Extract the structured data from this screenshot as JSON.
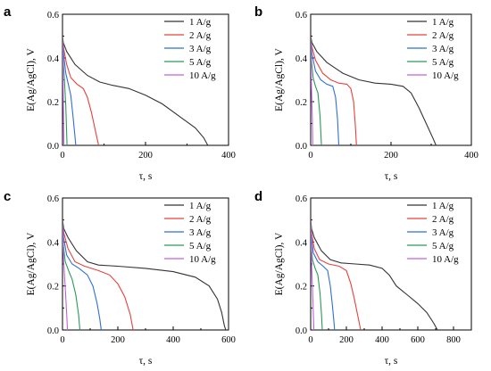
{
  "chart_data": [
    {
      "panel": "a",
      "type": "line",
      "xlabel": "τ, s",
      "ylabel": "E(Ag/AgCl), V",
      "xlim": [
        0,
        400
      ],
      "ylim": [
        0,
        0.6
      ],
      "xticks": [
        0,
        200,
        400
      ],
      "yticks": [
        0.0,
        0.2,
        0.4,
        0.6
      ],
      "legend": "top-right",
      "series": [
        {
          "name": "1  A/g",
          "color": "#333333",
          "points": [
            [
              0,
              0.5
            ],
            [
              2,
              0.47
            ],
            [
              10,
              0.43
            ],
            [
              30,
              0.37
            ],
            [
              60,
              0.32
            ],
            [
              90,
              0.29
            ],
            [
              120,
              0.275
            ],
            [
              160,
              0.26
            ],
            [
              200,
              0.23
            ],
            [
              240,
              0.19
            ],
            [
              280,
              0.135
            ],
            [
              320,
              0.08
            ],
            [
              340,
              0.035
            ],
            [
              350,
              0.0
            ]
          ]
        },
        {
          "name": "2 A/g",
          "color": "#e8403d",
          "points": [
            [
              0,
              0.5
            ],
            [
              3,
              0.44
            ],
            [
              10,
              0.37
            ],
            [
              20,
              0.31
            ],
            [
              35,
              0.28
            ],
            [
              50,
              0.26
            ],
            [
              60,
              0.22
            ],
            [
              70,
              0.15
            ],
            [
              80,
              0.06
            ],
            [
              87,
              0.0
            ]
          ]
        },
        {
          "name": "3 A/g",
          "color": "#2f6fd6",
          "points": [
            [
              0,
              0.49
            ],
            [
              3,
              0.41
            ],
            [
              8,
              0.33
            ],
            [
              14,
              0.28
            ],
            [
              20,
              0.23
            ],
            [
              25,
              0.14
            ],
            [
              30,
              0.04
            ],
            [
              32,
              0.0
            ]
          ]
        },
        {
          "name": "5 A/g",
          "color": "#2a9a58",
          "points": [
            [
              0,
              0.48
            ],
            [
              2,
              0.38
            ],
            [
              5,
              0.29
            ],
            [
              8,
              0.18
            ],
            [
              10,
              0.05
            ],
            [
              11,
              0.0
            ]
          ]
        },
        {
          "name": "10 A/g",
          "color": "#c060e0",
          "points": [
            [
              0,
              0.47
            ],
            [
              1,
              0.36
            ],
            [
              2,
              0.2
            ],
            [
              3,
              0.05
            ],
            [
              3.5,
              0.0
            ]
          ]
        }
      ]
    },
    {
      "panel": "b",
      "type": "line",
      "xlabel": "τ, s",
      "ylabel": "E(Ag/AgCl), V",
      "xlim": [
        0,
        400
      ],
      "ylim": [
        0,
        0.6
      ],
      "xticks": [
        0,
        200,
        400
      ],
      "yticks": [
        0.0,
        0.2,
        0.4,
        0.6
      ],
      "legend": "top-right",
      "series": [
        {
          "name": "1  A/g",
          "color": "#333333",
          "points": [
            [
              0,
              0.5
            ],
            [
              3,
              0.47
            ],
            [
              15,
              0.43
            ],
            [
              40,
              0.38
            ],
            [
              80,
              0.33
            ],
            [
              120,
              0.3
            ],
            [
              160,
              0.285
            ],
            [
              200,
              0.28
            ],
            [
              230,
              0.27
            ],
            [
              250,
              0.24
            ],
            [
              270,
              0.17
            ],
            [
              290,
              0.09
            ],
            [
              305,
              0.03
            ],
            [
              312,
              0.0
            ]
          ]
        },
        {
          "name": "2 A/g",
          "color": "#e8403d",
          "points": [
            [
              0,
              0.5
            ],
            [
              3,
              0.45
            ],
            [
              12,
              0.39
            ],
            [
              30,
              0.33
            ],
            [
              50,
              0.3
            ],
            [
              70,
              0.285
            ],
            [
              90,
              0.28
            ],
            [
              100,
              0.26
            ],
            [
              107,
              0.2
            ],
            [
              111,
              0.1
            ],
            [
              114,
              0.0
            ]
          ]
        },
        {
          "name": "3 A/g",
          "color": "#2f6fd6",
          "points": [
            [
              0,
              0.49
            ],
            [
              3,
              0.42
            ],
            [
              12,
              0.34
            ],
            [
              25,
              0.3
            ],
            [
              40,
              0.28
            ],
            [
              55,
              0.27
            ],
            [
              62,
              0.22
            ],
            [
              67,
              0.12
            ],
            [
              70,
              0.0
            ]
          ]
        },
        {
          "name": "5 A/g",
          "color": "#2a9a58",
          "points": [
            [
              0,
              0.48
            ],
            [
              2,
              0.39
            ],
            [
              6,
              0.31
            ],
            [
              12,
              0.27
            ],
            [
              18,
              0.24
            ],
            [
              23,
              0.14
            ],
            [
              27,
              0.0
            ]
          ]
        },
        {
          "name": "10 A/g",
          "color": "#c060e0",
          "points": [
            [
              0,
              0.47
            ],
            [
              1,
              0.37
            ],
            [
              2,
              0.26
            ],
            [
              4,
              0.13
            ],
            [
              5,
              0.0
            ]
          ]
        }
      ]
    },
    {
      "panel": "c",
      "type": "line",
      "xlabel": "τ, s",
      "ylabel": "E(Ag/AgCl), V",
      "xlim": [
        0,
        600
      ],
      "ylim": [
        0,
        0.6
      ],
      "xticks": [
        0,
        200,
        400,
        600
      ],
      "yticks": [
        0.0,
        0.2,
        0.4,
        0.6
      ],
      "legend": "top-right",
      "series": [
        {
          "name": "1  A/g",
          "color": "#333333",
          "points": [
            [
              0,
              0.5
            ],
            [
              5,
              0.46
            ],
            [
              20,
              0.42
            ],
            [
              50,
              0.36
            ],
            [
              90,
              0.31
            ],
            [
              130,
              0.295
            ],
            [
              200,
              0.29
            ],
            [
              300,
              0.28
            ],
            [
              400,
              0.265
            ],
            [
              480,
              0.24
            ],
            [
              530,
              0.2
            ],
            [
              560,
              0.14
            ],
            [
              575,
              0.08
            ],
            [
              585,
              0.02
            ],
            [
              590,
              0.0
            ]
          ]
        },
        {
          "name": "2 A/g",
          "color": "#e8403d",
          "points": [
            [
              0,
              0.5
            ],
            [
              5,
              0.44
            ],
            [
              20,
              0.37
            ],
            [
              45,
              0.31
            ],
            [
              80,
              0.29
            ],
            [
              130,
              0.27
            ],
            [
              170,
              0.25
            ],
            [
              200,
              0.21
            ],
            [
              225,
              0.15
            ],
            [
              245,
              0.07
            ],
            [
              255,
              0.0
            ]
          ]
        },
        {
          "name": "3 A/g",
          "color": "#2f6fd6",
          "points": [
            [
              0,
              0.49
            ],
            [
              4,
              0.42
            ],
            [
              15,
              0.34
            ],
            [
              35,
              0.3
            ],
            [
              60,
              0.28
            ],
            [
              90,
              0.25
            ],
            [
              110,
              0.2
            ],
            [
              125,
              0.12
            ],
            [
              135,
              0.05
            ],
            [
              140,
              0.0
            ]
          ]
        },
        {
          "name": "5 A/g",
          "color": "#2a9a58",
          "points": [
            [
              0,
              0.48
            ],
            [
              3,
              0.39
            ],
            [
              10,
              0.31
            ],
            [
              22,
              0.27
            ],
            [
              35,
              0.23
            ],
            [
              48,
              0.16
            ],
            [
              58,
              0.07
            ],
            [
              63,
              0.0
            ]
          ]
        },
        {
          "name": "10 A/g",
          "color": "#c060e0",
          "points": [
            [
              0,
              0.47
            ],
            [
              2,
              0.37
            ],
            [
              6,
              0.27
            ],
            [
              11,
              0.17
            ],
            [
              15,
              0.07
            ],
            [
              18,
              0.0
            ]
          ]
        }
      ]
    },
    {
      "panel": "d",
      "type": "line",
      "xlabel": "τ, s",
      "ylabel": "E(Ag/AgCl), V",
      "xlim": [
        0,
        900
      ],
      "ylim": [
        0,
        0.6
      ],
      "xticks": [
        0,
        200,
        400,
        600,
        800
      ],
      "yticks": [
        0.0,
        0.2,
        0.4,
        0.6
      ],
      "legend": "top-right",
      "series": [
        {
          "name": "1  A/g",
          "color": "#333333",
          "points": [
            [
              0,
              0.5
            ],
            [
              5,
              0.46
            ],
            [
              20,
              0.42
            ],
            [
              60,
              0.36
            ],
            [
              110,
              0.32
            ],
            [
              170,
              0.305
            ],
            [
              250,
              0.3
            ],
            [
              330,
              0.295
            ],
            [
              400,
              0.28
            ],
            [
              440,
              0.25
            ],
            [
              480,
              0.2
            ],
            [
              540,
              0.16
            ],
            [
              600,
              0.12
            ],
            [
              650,
              0.08
            ],
            [
              690,
              0.03
            ],
            [
              710,
              0.0
            ]
          ]
        },
        {
          "name": "2 A/g",
          "color": "#e8403d",
          "points": [
            [
              0,
              0.5
            ],
            [
              5,
              0.44
            ],
            [
              20,
              0.37
            ],
            [
              50,
              0.32
            ],
            [
              100,
              0.3
            ],
            [
              160,
              0.29
            ],
            [
              200,
              0.27
            ],
            [
              225,
              0.21
            ],
            [
              245,
              0.14
            ],
            [
              265,
              0.06
            ],
            [
              280,
              0.0
            ]
          ]
        },
        {
          "name": "3 A/g",
          "color": "#2f6fd6",
          "points": [
            [
              0,
              0.49
            ],
            [
              4,
              0.42
            ],
            [
              15,
              0.35
            ],
            [
              40,
              0.31
            ],
            [
              70,
              0.29
            ],
            [
              95,
              0.27
            ],
            [
              110,
              0.2
            ],
            [
              122,
              0.11
            ],
            [
              130,
              0.04
            ],
            [
              134,
              0.0
            ]
          ]
        },
        {
          "name": "5 A/g",
          "color": "#2a9a58",
          "points": [
            [
              0,
              0.48
            ],
            [
              3,
              0.39
            ],
            [
              10,
              0.32
            ],
            [
              25,
              0.28
            ],
            [
              40,
              0.25
            ],
            [
              52,
              0.17
            ],
            [
              60,
              0.08
            ],
            [
              65,
              0.0
            ]
          ]
        },
        {
          "name": "10 A/g",
          "color": "#c060e0",
          "points": [
            [
              0,
              0.47
            ],
            [
              2,
              0.38
            ],
            [
              6,
              0.28
            ],
            [
              11,
              0.17
            ],
            [
              15,
              0.07
            ],
            [
              18,
              0.0
            ]
          ]
        }
      ]
    }
  ]
}
